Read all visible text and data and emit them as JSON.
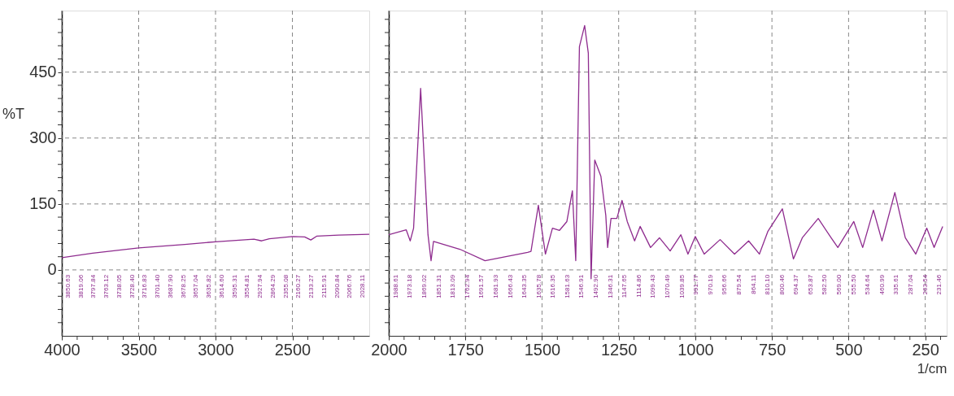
{
  "chart_data": [
    {
      "type": "line",
      "ylabel": "%T",
      "x": [
        4000,
        3800,
        3500,
        3200,
        3000,
        2750,
        2700,
        2650,
        2500,
        2420,
        2380,
        2340,
        2200,
        2000
      ],
      "series": [
        {
          "color": "#8e2b8e",
          "values": [
            28,
            38,
            50,
            58,
            64,
            70,
            66,
            71,
            76,
            75,
            68,
            77,
            79,
            81
          ]
        }
      ],
      "xlim": [
        4000,
        2000
      ],
      "xticks": [
        4000,
        {
          "value": 3900,
          "label": null
        },
        {
          "value": 3800,
          "label": null
        },
        {
          "value": 3700,
          "label": null
        },
        {
          "value": 3600,
          "label": null
        },
        3500,
        {
          "value": 3400,
          "label": null
        },
        {
          "value": 3300,
          "label": null
        },
        {
          "value": 3200,
          "label": null
        },
        {
          "value": 3100,
          "label": null
        },
        3000,
        {
          "value": 2900,
          "label": null
        },
        {
          "value": 2800,
          "label": null
        },
        {
          "value": 2700,
          "label": null
        },
        {
          "value": 2600,
          "label": null
        },
        2500,
        {
          "value": 2400,
          "label": null
        },
        {
          "value": 2300,
          "label": null
        },
        {
          "value": 2200,
          "label": null
        },
        {
          "value": 2100,
          "label": null
        }
      ],
      "ylim": [
        -150,
        590
      ],
      "yticks": [
        {
          "value": -120,
          "label": null
        },
        {
          "value": -90,
          "label": null
        },
        {
          "value": -60,
          "label": null
        },
        {
          "value": -30,
          "label": null
        },
        0,
        {
          "value": 30,
          "label": null
        },
        {
          "value": 60,
          "label": null
        },
        {
          "value": 90,
          "label": null
        },
        {
          "value": 120,
          "label": null
        },
        150,
        {
          "value": 180,
          "label": null
        },
        {
          "value": 210,
          "label": null
        },
        {
          "value": 240,
          "label": null
        },
        {
          "value": 270,
          "label": null
        },
        300,
        {
          "value": 330,
          "label": null
        },
        {
          "value": 360,
          "label": null
        },
        {
          "value": 390,
          "label": null
        },
        {
          "value": 420,
          "label": null
        },
        450,
        {
          "value": 480,
          "label": null
        },
        {
          "value": 510,
          "label": null
        },
        {
          "value": 540,
          "label": null
        },
        {
          "value": 570,
          "label": null
        }
      ],
      "grid": true,
      "line_style": "solid",
      "marker": "none",
      "annotations": [
        "3850.63",
        "3819.06",
        "3797.84",
        "3763.12",
        "3738.05",
        "3728.40",
        "3716.83",
        "3701.40",
        "3687.90",
        "3678.25",
        "3657.04",
        "3635.82",
        "3614.60",
        "3595.31",
        "3554.81",
        "2927.94",
        "2864.29",
        "2355.08",
        "2160.27",
        "2133.27",
        "2115.91",
        "2090.84",
        "2066.76",
        "2028.11"
      ]
    },
    {
      "type": "line",
      "xlabel": "1/cm",
      "x": [
        2000,
        1943,
        1930,
        1919,
        1896,
        1872,
        1862,
        1854,
        1768,
        1686,
        1547,
        1536,
        1512,
        1489,
        1466,
        1443,
        1419,
        1401,
        1390,
        1378,
        1361,
        1349,
        1340,
        1328,
        1308,
        1292,
        1286,
        1275,
        1256,
        1239,
        1222,
        1198,
        1180,
        1146,
        1117,
        1082,
        1047,
        1024,
        1000,
        971,
        919,
        872,
        826,
        791,
        763,
        716,
        680,
        651,
        599,
        557,
        535,
        483,
        454,
        419,
        391,
        349,
        315,
        281,
        245,
        221,
        193
      ],
      "series": [
        {
          "color": "#8e2b8e",
          "values": [
            80,
            91,
            66,
            95,
            413,
            80,
            21,
            65,
            47,
            21,
            40,
            42,
            147,
            36,
            95,
            90,
            110,
            180,
            21,
            508,
            556,
            493,
            -20,
            250,
            213,
            124,
            51,
            117,
            117,
            158,
            110,
            66,
            99,
            51,
            73,
            43,
            80,
            36,
            76,
            36,
            69,
            36,
            66,
            36,
            88,
            139,
            25,
            73,
            117,
            73,
            51,
            110,
            51,
            136,
            66,
            176,
            73,
            36,
            95,
            51,
            99
          ]
        }
      ],
      "xlim": [
        2000,
        180
      ],
      "xticks": [
        2000,
        {
          "value": 1950,
          "label": null
        },
        {
          "value": 1900,
          "label": null
        },
        {
          "value": 1850,
          "label": null
        },
        {
          "value": 1800,
          "label": null
        },
        1750,
        {
          "value": 1700,
          "label": null
        },
        {
          "value": 1650,
          "label": null
        },
        {
          "value": 1600,
          "label": null
        },
        {
          "value": 1550,
          "label": null
        },
        1500,
        {
          "value": 1450,
          "label": null
        },
        {
          "value": 1400,
          "label": null
        },
        {
          "value": 1350,
          "label": null
        },
        {
          "value": 1300,
          "label": null
        },
        1250,
        {
          "value": 1200,
          "label": null
        },
        {
          "value": 1150,
          "label": null
        },
        {
          "value": 1100,
          "label": null
        },
        {
          "value": 1050,
          "label": null
        },
        1000,
        {
          "value": 950,
          "label": null
        },
        {
          "value": 900,
          "label": null
        },
        {
          "value": 850,
          "label": null
        },
        {
          "value": 800,
          "label": null
        },
        750,
        {
          "value": 700,
          "label": null
        },
        {
          "value": 650,
          "label": null
        },
        {
          "value": 600,
          "label": null
        },
        {
          "value": 550,
          "label": null
        },
        500,
        {
          "value": 450,
          "label": null
        },
        {
          "value": 400,
          "label": null
        },
        {
          "value": 350,
          "label": null
        },
        {
          "value": 300,
          "label": null
        },
        250,
        {
          "value": 200,
          "label": null
        }
      ],
      "ylim": [
        -150,
        590
      ],
      "yticks": [
        {
          "value": -120,
          "label": null
        },
        {
          "value": -90,
          "label": null
        },
        {
          "value": -60,
          "label": null
        },
        {
          "value": -30,
          "label": null
        },
        0,
        {
          "value": 30,
          "label": null
        },
        {
          "value": 60,
          "label": null
        },
        {
          "value": 90,
          "label": null
        },
        {
          "value": 120,
          "label": null
        },
        150,
        {
          "value": 180,
          "label": null
        },
        {
          "value": 210,
          "label": null
        },
        {
          "value": 240,
          "label": null
        },
        {
          "value": 270,
          "label": null
        },
        300,
        {
          "value": 330,
          "label": null
        },
        {
          "value": 360,
          "label": null
        },
        {
          "value": 390,
          "label": null
        },
        {
          "value": 420,
          "label": null
        },
        450,
        {
          "value": 480,
          "label": null
        },
        {
          "value": 510,
          "label": null
        },
        {
          "value": 540,
          "label": null
        },
        {
          "value": 570,
          "label": null
        }
      ],
      "grid": true,
      "tick_labels": "x",
      "line_style": "solid",
      "marker": "none",
      "annotations": [
        "1988.61",
        "1973.18",
        "1869.02",
        "1851.31",
        "1813.09",
        "1762.94",
        "1691.57",
        "1681.93",
        "1666.43",
        "1643.35",
        "1635.78",
        "1616.35",
        "1581.63",
        "1546.91",
        "1492.90",
        "1346.31",
        "1147.65",
        "1114.86",
        "1099.43",
        "1070.49",
        "1039.85",
        "991.77",
        "970.19",
        "956.66",
        "879.54",
        "864.11",
        "810.10",
        "800.46",
        "694.37",
        "653.87",
        "582.50",
        "569.00",
        "555.50",
        "534.64",
        "460.99",
        "335.61",
        "287.04",
        "263.54",
        "231.46"
      ]
    }
  ]
}
